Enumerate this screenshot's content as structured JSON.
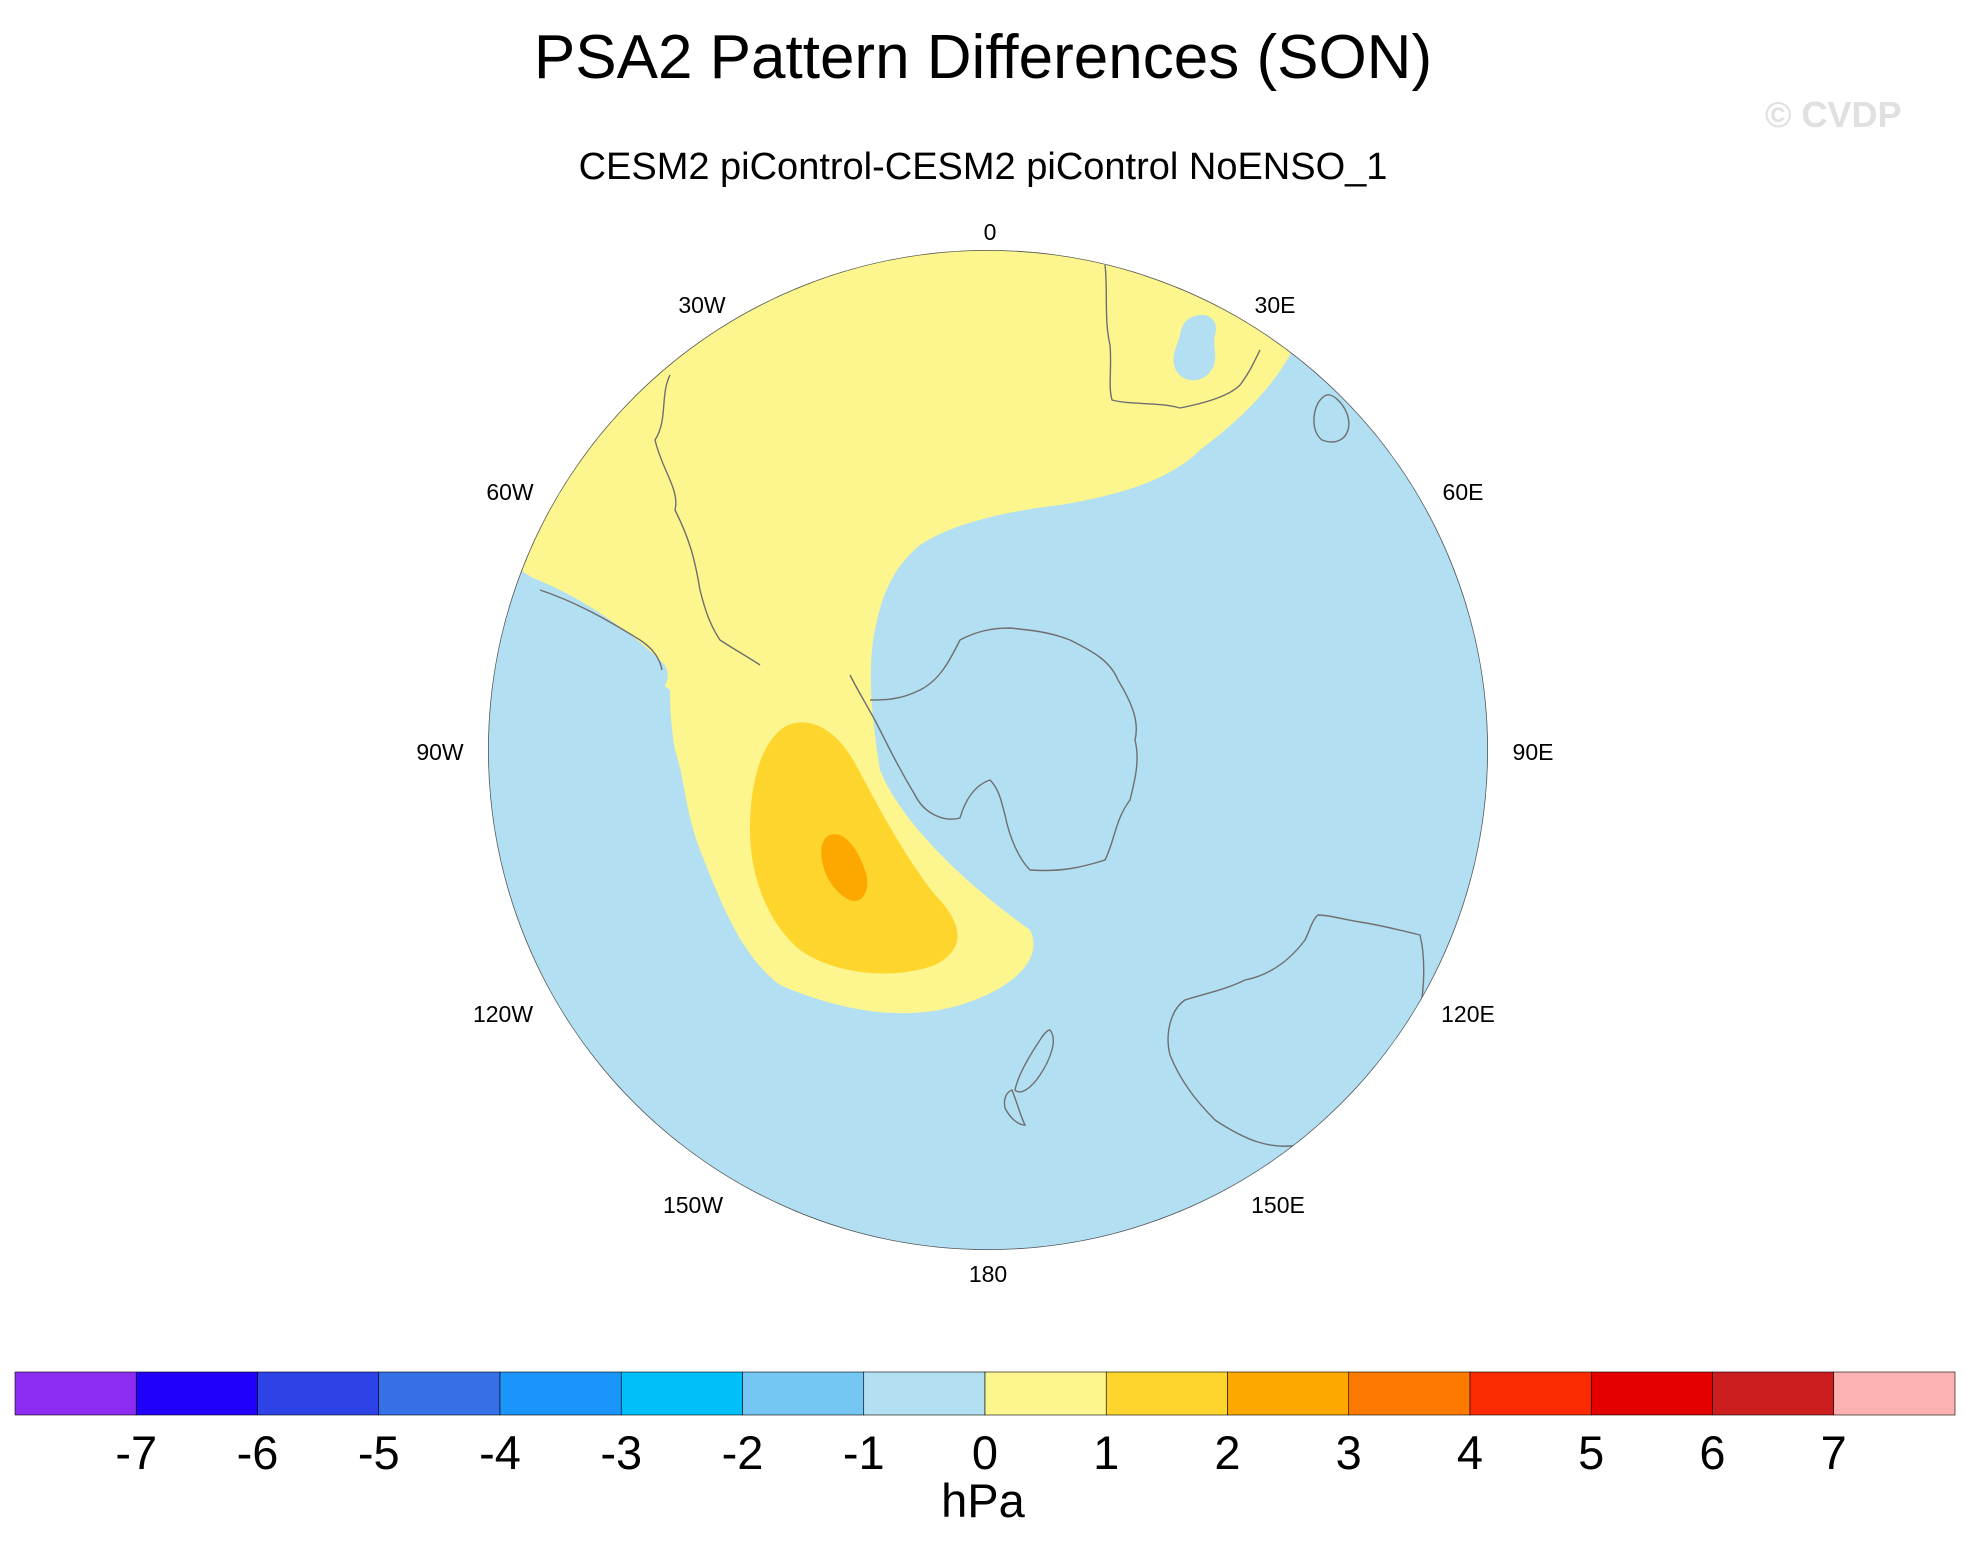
{
  "title": "PSA2 Pattern Differences (SON)",
  "subtitle": "CESM2 piControl-CESM2 piControl NoENSO_1",
  "watermark": "© CVDP",
  "map": {
    "projection": "south-polar-stereographic",
    "longitude_labels": [
      "0",
      "30E",
      "60E",
      "90E",
      "120E",
      "150E",
      "180",
      "150W",
      "120W",
      "90W",
      "60W",
      "30W"
    ],
    "field_colors": {
      "negative_0_to_-1": "#b3dff2",
      "positive_0_to_1": "#fdf68f",
      "positive_1_to_2": "#fdd52d",
      "positive_2_to_3": "#fda800"
    },
    "coastline_color": "#6f6f6f"
  },
  "colorbar": {
    "units": "hPa",
    "tick_labels": [
      "-7",
      "-6",
      "-5",
      "-4",
      "-3",
      "-2",
      "-1",
      "0",
      "1",
      "2",
      "3",
      "4",
      "5",
      "6",
      "7"
    ],
    "colors": [
      "#8c2cf1",
      "#2000fa",
      "#2d43e8",
      "#3670e6",
      "#1c95fb",
      "#00c0fa",
      "#73c7f2",
      "#b3dff2",
      "#fdf68f",
      "#fdd52d",
      "#fda800",
      "#fc7a00",
      "#fc2a00",
      "#e50000",
      "#cc1e1e",
      "#fdb2b2"
    ]
  }
}
